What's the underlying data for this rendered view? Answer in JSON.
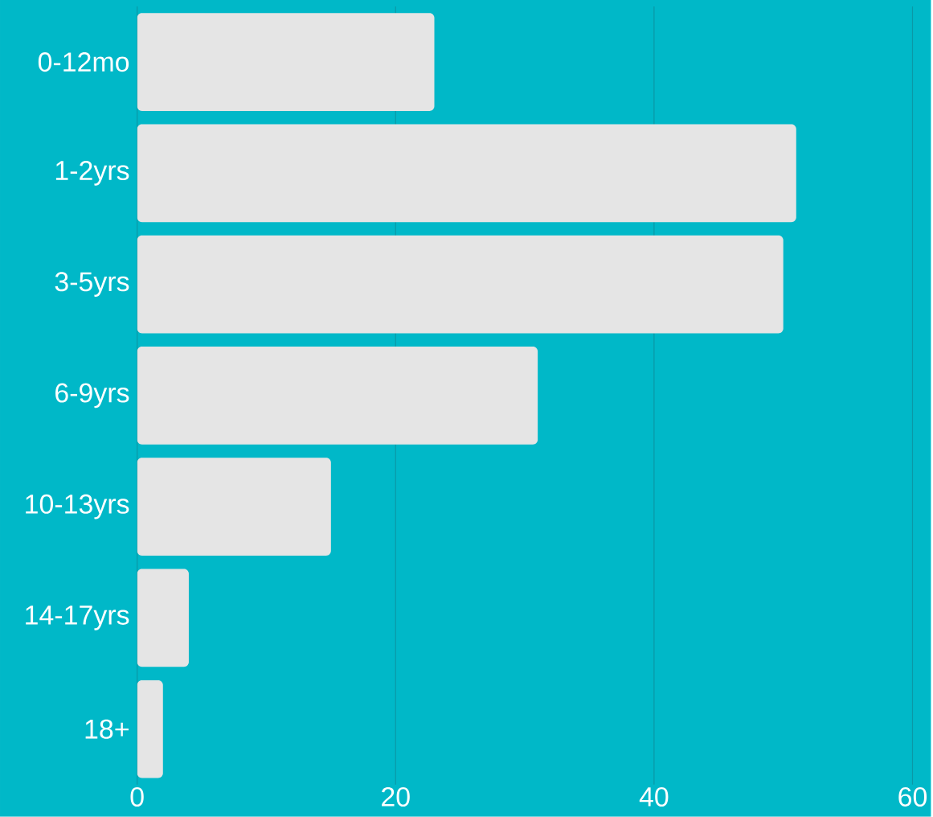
{
  "chart_data": {
    "type": "bar",
    "orientation": "horizontal",
    "categories": [
      "0-12mo",
      "1-2yrs",
      "3-5yrs",
      "6-9yrs",
      "10-13yrs",
      "14-17yrs",
      "18+"
    ],
    "values": [
      23,
      51,
      50,
      31,
      15,
      4,
      2
    ],
    "color": "#e5e5e5",
    "xlim": [
      0,
      60
    ],
    "xticks": [
      0,
      20,
      40,
      60
    ],
    "grid": "x"
  }
}
